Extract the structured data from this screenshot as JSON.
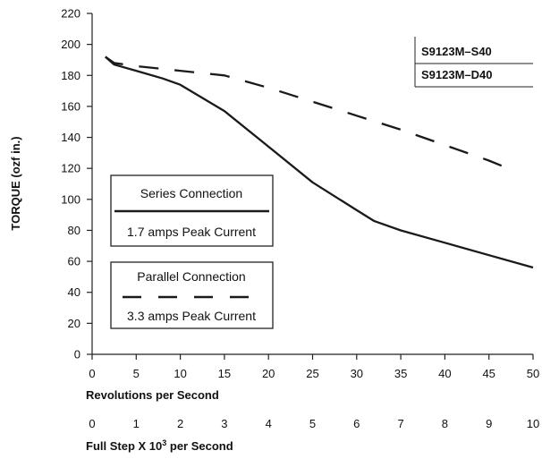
{
  "chart_data": {
    "type": "line",
    "ylabel": "TORQUE (ozf in.)",
    "xlabel": "Revolutions per Second",
    "x2label": {
      "prefix": "Full Step X 10",
      "sup": "3",
      "suffix": " per Second"
    },
    "xlim": [
      0,
      50
    ],
    "ylim": [
      0,
      220
    ],
    "x_ticks": [
      "0",
      "5",
      "10",
      "15",
      "20",
      "25",
      "30",
      "35",
      "40",
      "45",
      "50"
    ],
    "x2_ticks": [
      "0",
      "1",
      "2",
      "3",
      "4",
      "5",
      "6",
      "7",
      "8",
      "9",
      "10"
    ],
    "y_ticks": [
      "0",
      "20",
      "40",
      "60",
      "80",
      "100",
      "120",
      "140",
      "160",
      "180",
      "200",
      "220"
    ],
    "grid": "none",
    "models": [
      "S9123M–S40",
      "S9123M–D40"
    ],
    "series": [
      {
        "style": "solid",
        "x": [
          1.5,
          2.5,
          5,
          8,
          10,
          15,
          20,
          25,
          30,
          32,
          35,
          40,
          45,
          50
        ],
        "y": [
          192,
          187,
          183,
          178,
          174,
          157,
          134,
          111,
          93,
          86,
          80,
          72,
          64,
          56
        ]
      },
      {
        "style": "dashed",
        "x": [
          1.5,
          2.5,
          5,
          10,
          15,
          20,
          25,
          30,
          35,
          40,
          45,
          48
        ],
        "y": [
          192,
          188,
          186,
          183,
          180,
          172,
          163,
          154,
          145,
          135,
          125,
          118
        ]
      }
    ],
    "legend": [
      {
        "title": "Series Connection",
        "note": "1.7 amps Peak Current",
        "style": "solid"
      },
      {
        "title": "Parallel Connection",
        "note": "3.3 amps Peak Current",
        "style": "dashed"
      }
    ]
  }
}
